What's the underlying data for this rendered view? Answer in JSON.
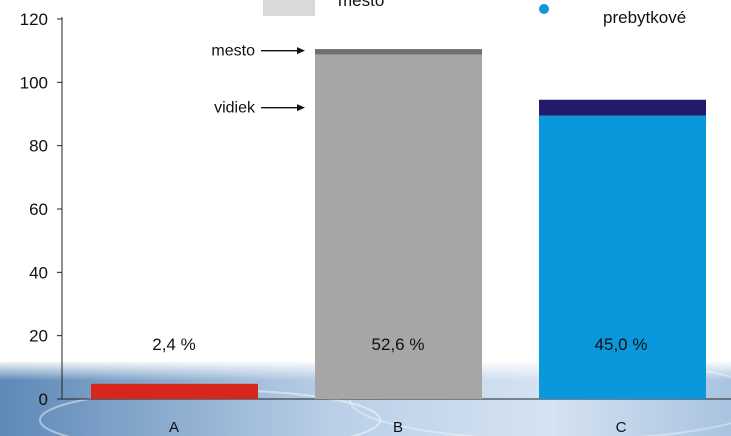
{
  "chart_data": {
    "type": "bar",
    "stacked": true,
    "categories": [
      "A",
      "B",
      "C"
    ],
    "ylim": [
      0,
      120
    ],
    "yticks": [
      0,
      20,
      40,
      60,
      80,
      100,
      120
    ],
    "grid": false,
    "segments": [
      {
        "category": "A",
        "from": 0,
        "to": 4.8,
        "color": "#d9261c"
      },
      {
        "category": "B",
        "from": 0,
        "to": 108.8,
        "color": "#a6a6a6"
      },
      {
        "category": "B",
        "from": 108.8,
        "to": 110.5,
        "color": "#6f6f6f"
      },
      {
        "category": "C",
        "from": 0,
        "to": 89.5,
        "color": "#0a98dc"
      },
      {
        "category": "C",
        "from": 89.5,
        "to": 94.5,
        "color": "#231a6b"
      }
    ],
    "data_labels": [
      {
        "category": "A",
        "text": "2,4 %",
        "y": 15.5
      },
      {
        "category": "B",
        "text": "52,6 %",
        "y": 15.5
      },
      {
        "category": "C",
        "text": "45,0 %",
        "y": 15.5
      }
    ],
    "legend": {
      "placement": "top",
      "items": [
        {
          "label": "mesto",
          "color": "#d9d9d9",
          "marker": "square"
        },
        {
          "label": "prebytkové",
          "color": "#0a98dc",
          "marker": "dot"
        }
      ]
    },
    "annotations": [
      {
        "text": "mesto",
        "target_category": "B",
        "y": 110
      },
      {
        "text": "vidiek",
        "target_category": "B",
        "y": 92
      }
    ]
  }
}
